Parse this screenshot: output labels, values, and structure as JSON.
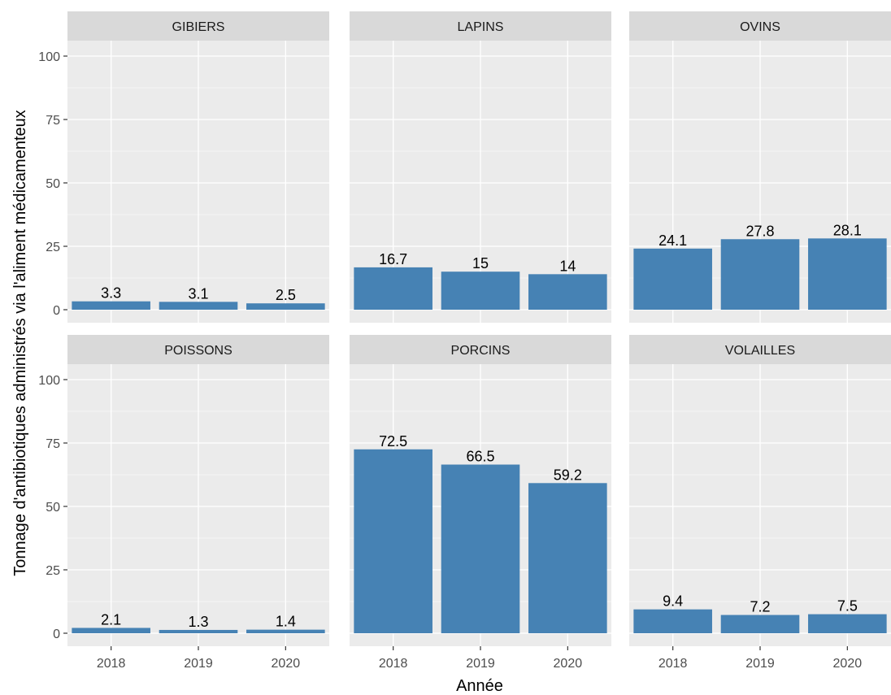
{
  "chart_data": {
    "type": "bar",
    "xlabel": "Année",
    "ylabel": "Tonnage d'antibiotiques administrés via l'aliment médicamenteux",
    "ylim": [
      0,
      100
    ],
    "yticks": [
      0,
      25,
      50,
      75,
      100
    ],
    "categories": [
      "2018",
      "2019",
      "2020"
    ],
    "grid": true,
    "layout": "facet grid, 2 rows by 3 columns",
    "bar_color": "#4682b4",
    "panel_background": "#ebebeb",
    "strip_background": "#d9d9d9",
    "facets": [
      {
        "name": "GIBIERS",
        "values": [
          3.3,
          3.1,
          2.5
        ],
        "labels": [
          "3.3",
          "3.1",
          "2.5"
        ]
      },
      {
        "name": "LAPINS",
        "values": [
          16.7,
          15,
          14
        ],
        "labels": [
          "16.7",
          "15",
          "14"
        ]
      },
      {
        "name": "OVINS",
        "values": [
          24.1,
          27.8,
          28.1
        ],
        "labels": [
          "24.1",
          "27.8",
          "28.1"
        ]
      },
      {
        "name": "POISSONS",
        "values": [
          2.1,
          1.3,
          1.4
        ],
        "labels": [
          "2.1",
          "1.3",
          "1.4"
        ]
      },
      {
        "name": "PORCINS",
        "values": [
          72.5,
          66.5,
          59.2
        ],
        "labels": [
          "72.5",
          "66.5",
          "59.2"
        ]
      },
      {
        "name": "VOLAILLES",
        "values": [
          9.4,
          7.2,
          7.5
        ],
        "labels": [
          "9.4",
          "7.2",
          "7.5"
        ]
      }
    ]
  }
}
